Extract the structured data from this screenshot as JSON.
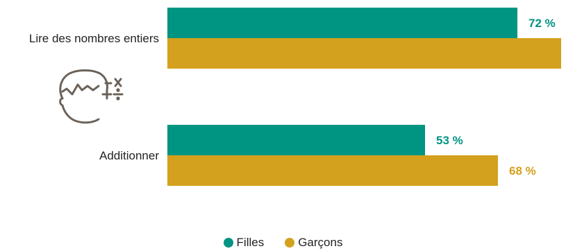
{
  "chart_data": {
    "type": "bar",
    "orientation": "horizontal",
    "categories": [
      "Lire des nombres entiers",
      "Additionner"
    ],
    "series": [
      {
        "name": "Filles",
        "values": [
          72,
          53
        ],
        "color": "#009483"
      },
      {
        "name": "Garçons",
        "values": [
          81,
          68
        ],
        "color": "#d4a11e"
      }
    ],
    "value_suffix": " %",
    "xlim": [
      0,
      100
    ],
    "grid": false,
    "legend_position": "bottom-center",
    "icon": "child-math-icon"
  },
  "colors": {
    "filles": "#009483",
    "garcons": "#d4a11e",
    "icon": "#6b625a"
  }
}
